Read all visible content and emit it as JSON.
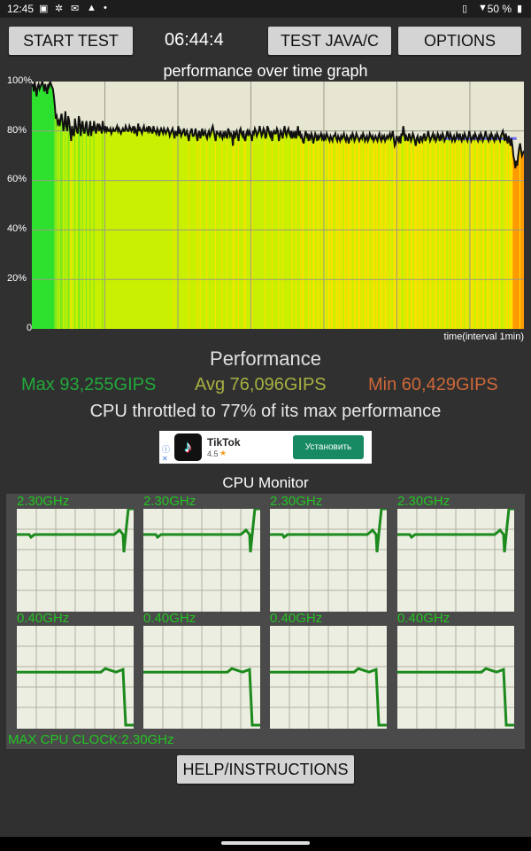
{
  "status_bar": {
    "time": "12:45",
    "battery": "50 %",
    "icons": [
      "image-icon",
      "settings-icon",
      "mail-icon",
      "warning-icon",
      "dot-icon",
      "vibrate-icon",
      "wifi-icon",
      "battery-icon"
    ]
  },
  "toolbar": {
    "start_label": "START TEST",
    "timer": "06:44:4",
    "java_label": "TEST JAVA/C",
    "options_label": "OPTIONS"
  },
  "graph": {
    "title": "performance over time graph",
    "x_label": "time(interval 1min)",
    "y_ticks": [
      "100%",
      "80%",
      "60%",
      "40%",
      "20%",
      "0"
    ],
    "colors": {
      "good": "#2ee02e",
      "mid": "#c8f000",
      "warn": "#ffe000",
      "bad": "#ff9a00",
      "line": "#111111",
      "avg_line": "#6a6af0",
      "bg": "#e6e6d2"
    }
  },
  "chart_data": {
    "type": "line",
    "title": "performance over time graph",
    "xlabel": "time(interval 1min)",
    "ylabel": "",
    "ylim": [
      0,
      100
    ],
    "y_ticks": [
      "100%",
      "80%",
      "60%",
      "40%",
      "20%",
      "0"
    ],
    "grid": true,
    "series": [
      {
        "values": [
          98,
          99,
          96,
          100,
          97,
          94,
          98,
          99,
          97,
          98,
          99,
          100,
          98,
          96,
          99,
          97,
          95,
          99,
          98,
          100,
          99,
          98,
          97,
          94,
          90,
          85,
          86,
          83,
          84,
          82,
          85,
          87,
          84,
          80,
          83,
          88,
          82,
          80,
          86,
          84,
          80,
          76,
          82,
          79,
          78,
          85,
          82,
          80,
          79,
          86,
          84,
          78,
          82,
          84,
          80,
          79,
          82,
          84,
          80,
          78,
          81,
          84,
          78,
          82,
          80,
          84,
          81,
          79,
          82,
          83,
          80,
          82,
          81,
          79,
          84,
          81,
          80,
          82,
          80,
          81,
          80,
          80,
          81,
          79,
          80,
          81,
          80,
          80,
          81,
          82,
          80,
          81,
          80,
          79,
          80,
          81,
          80,
          80,
          82,
          81,
          80,
          80,
          82,
          81,
          80,
          81,
          82,
          79,
          81,
          80,
          78,
          83,
          80,
          81,
          80,
          79,
          81,
          82,
          80,
          80,
          81,
          80,
          82,
          80,
          81,
          80,
          79,
          82,
          80,
          80,
          79,
          81,
          80,
          78,
          80,
          81,
          80,
          79,
          81,
          80,
          79,
          80,
          81,
          80,
          78,
          79,
          80,
          81,
          79,
          77,
          80,
          79,
          78,
          82,
          79,
          80,
          78,
          79,
          80,
          81,
          78,
          79,
          80,
          78,
          76,
          79,
          80,
          81,
          78,
          78,
          79,
          81,
          78,
          76,
          79,
          80,
          77,
          79,
          81,
          78,
          79,
          80,
          78,
          77,
          79,
          80,
          78,
          79,
          81,
          82,
          80,
          78,
          76,
          80,
          79,
          79,
          78,
          80,
          78,
          77,
          79,
          78,
          80,
          78,
          77,
          81,
          80,
          78,
          79,
          78,
          74,
          80,
          77,
          79,
          80,
          78,
          76,
          80,
          81,
          79,
          78,
          80,
          77,
          76,
          79,
          80,
          78,
          80,
          79,
          78,
          76,
          80,
          79,
          81,
          80,
          78,
          79,
          80,
          82,
          80,
          78,
          79,
          81,
          80,
          77,
          78,
          82,
          81,
          79,
          78,
          80,
          76,
          79,
          80,
          79,
          79,
          81,
          80,
          76,
          78,
          80,
          79,
          77,
          80,
          82,
          79,
          78,
          80,
          81,
          79,
          78,
          80,
          77,
          79,
          78,
          80,
          77,
          79,
          82,
          78,
          80,
          77,
          78,
          76,
          75,
          78,
          80,
          78,
          79,
          76,
          78,
          77,
          79,
          78,
          75,
          77,
          79,
          78,
          76,
          78,
          77,
          78,
          79,
          77,
          78,
          76,
          78,
          77,
          79,
          78,
          77,
          76,
          78,
          77,
          76,
          78,
          78,
          79,
          77,
          76,
          78,
          77,
          76,
          78,
          77,
          78,
          79,
          77,
          76,
          78,
          77,
          75,
          77,
          78,
          77,
          79,
          78,
          76,
          77,
          79,
          78,
          77,
          76,
          77,
          78,
          77,
          79,
          78,
          76,
          77,
          78,
          76,
          77,
          79,
          78,
          77,
          78,
          76,
          77,
          78,
          77,
          76,
          78,
          79,
          77,
          76,
          78,
          77,
          78,
          76,
          77,
          78,
          77,
          78,
          79,
          77,
          78,
          80,
          77,
          74,
          75,
          78,
          77,
          76,
          78,
          75,
          79,
          78,
          82,
          79,
          76,
          78,
          77,
          76,
          79,
          78,
          76,
          77,
          79,
          78,
          76,
          74,
          77,
          78,
          76,
          75,
          78,
          77,
          76,
          78,
          79,
          76,
          77,
          78,
          80,
          78,
          76,
          77,
          78,
          79,
          77,
          78,
          76,
          77,
          79,
          78,
          76,
          78,
          77,
          79,
          78,
          76,
          77,
          78,
          80,
          78,
          77,
          79,
          78,
          76,
          77,
          78,
          76,
          77,
          79,
          78,
          77,
          79,
          77,
          76,
          78,
          77,
          79,
          78,
          77,
          76,
          78,
          80,
          78,
          76,
          77,
          78,
          77,
          79,
          78,
          77,
          76,
          78,
          77,
          79,
          78,
          76,
          77,
          78,
          80,
          78,
          77,
          76,
          78,
          77,
          79,
          78,
          77,
          76,
          78,
          77,
          79,
          78,
          77,
          76,
          78,
          79,
          80,
          78,
          76,
          79,
          77,
          75,
          78,
          76,
          74,
          77,
          74,
          70,
          68,
          65,
          68,
          66,
          70,
          73,
          75,
          72,
          70,
          71,
          72
        ]
      },
      {
        "name": "avg",
        "values": [
          77,
          77
        ]
      }
    ]
  },
  "performance": {
    "title": "Performance",
    "max": "Max 93,255GIPS",
    "avg": "Avg 76,096GIPS",
    "min": "Min 60,429GIPS",
    "max_color": "#22a83a",
    "avg_color": "#a8b040",
    "min_color": "#d06838",
    "throttle_text": "CPU throttled to 77% of its max performance"
  },
  "ad": {
    "app_name": "TikTok",
    "rating": "4.5",
    "install_label": "Установить",
    "install_color": "#178a63"
  },
  "cpu_monitor": {
    "title": "CPU Monitor",
    "cores": [
      {
        "freq": "2.30GHz",
        "level": 0.75
      },
      {
        "freq": "2.30GHz",
        "level": 0.75
      },
      {
        "freq": "2.30GHz",
        "level": 0.75
      },
      {
        "freq": "2.30GHz",
        "level": 0.75
      },
      {
        "freq": "0.40GHz",
        "level": 0.55
      },
      {
        "freq": "0.40GHz",
        "level": 0.55
      },
      {
        "freq": "0.40GHz",
        "level": 0.55
      },
      {
        "freq": "0.40GHz",
        "level": 0.55
      }
    ],
    "max_clock": "MAX CPU CLOCK:2.30GHz"
  },
  "help_label": "HELP/INSTRUCTIONS"
}
